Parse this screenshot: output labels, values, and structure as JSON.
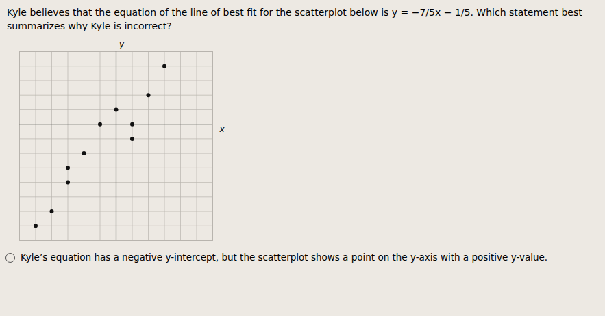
{
  "chart_data": {
    "type": "scatter",
    "title": "Kyle believes that the equation of the line of best fit for the scatterplot below is y = −7/5x − 1/5. Which statement best summarizes why Kyle is incorrect?",
    "x_label": "x",
    "y_label": "y",
    "x": [
      -5,
      -4,
      -3,
      -3,
      -2,
      -1,
      0,
      1,
      1,
      2,
      3
    ],
    "values": [
      -7,
      -6,
      -4,
      -3,
      -2,
      0,
      1,
      0,
      -1,
      2,
      4
    ],
    "color": "#111111",
    "xlim": [
      -6,
      6
    ],
    "ylim": [
      -8,
      5
    ],
    "xticks": [
      -6,
      -5,
      -4,
      -3,
      -2,
      -1,
      0,
      1,
      2,
      3,
      4,
      5,
      6
    ],
    "yticks": [
      -8,
      -7,
      -6,
      -5,
      -4,
      -3,
      -2,
      -1,
      0,
      1,
      2,
      3,
      4,
      5
    ],
    "grid": true,
    "tick_labels": false,
    "annotations": [
      "Kyle’s equation has a negative y-intercept, but the scatterplot shows a point on the y-axis with a positive y-value."
    ]
  }
}
